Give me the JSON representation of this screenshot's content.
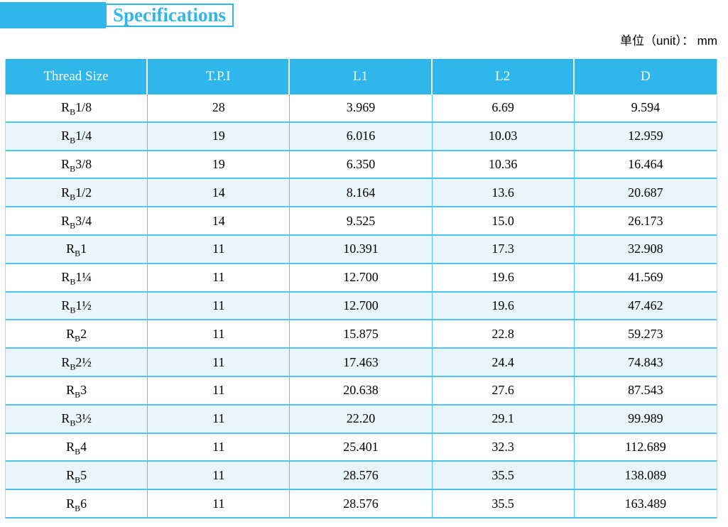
{
  "page": {
    "title": "Specifications",
    "unit_label": "单位（unit）： mm"
  },
  "colors": {
    "accent": "#2fb6ea",
    "row_divider": "#4cc5f0",
    "outer_border": "#a9e0f6",
    "alt_row_background": "#e9f4fb",
    "header_text": "#ffffff",
    "body_text": "#000000"
  },
  "table": {
    "thread_prefix": "R",
    "thread_subscript": "B",
    "headers": [
      "Thread Size",
      "T.P.I",
      "L1",
      "L2",
      "D"
    ],
    "rows": [
      {
        "size": "1/8",
        "tpi": "28",
        "l1": "3.969",
        "l2": "6.69",
        "d": "9.594"
      },
      {
        "size": "1/4",
        "tpi": "19",
        "l1": "6.016",
        "l2": "10.03",
        "d": "12.959"
      },
      {
        "size": "3/8",
        "tpi": "19",
        "l1": "6.350",
        "l2": "10.36",
        "d": "16.464"
      },
      {
        "size": "1/2",
        "tpi": "14",
        "l1": "8.164",
        "l2": "13.6",
        "d": "20.687"
      },
      {
        "size": "3/4",
        "tpi": "14",
        "l1": "9.525",
        "l2": "15.0",
        "d": "26.173"
      },
      {
        "size": "1",
        "tpi": "11",
        "l1": "10.391",
        "l2": "17.3",
        "d": "32.908"
      },
      {
        "size": "1¼",
        "tpi": "11",
        "l1": "12.700",
        "l2": "19.6",
        "d": "41.569"
      },
      {
        "size": "1½",
        "tpi": "11",
        "l1": "12.700",
        "l2": "19.6",
        "d": "47.462"
      },
      {
        "size": "2",
        "tpi": "11",
        "l1": "15.875",
        "l2": "22.8",
        "d": "59.273"
      },
      {
        "size": "2½",
        "tpi": "11",
        "l1": "17.463",
        "l2": "24.4",
        "d": "74.843"
      },
      {
        "size": "3",
        "tpi": "11",
        "l1": "20.638",
        "l2": "27.6",
        "d": "87.543"
      },
      {
        "size": "3½",
        "tpi": "11",
        "l1": "22.20",
        "l2": "29.1",
        "d": "99.989"
      },
      {
        "size": "4",
        "tpi": "11",
        "l1": "25.401",
        "l2": "32.3",
        "d": "112.689"
      },
      {
        "size": "5",
        "tpi": "11",
        "l1": "28.576",
        "l2": "35.5",
        "d": "138.089"
      },
      {
        "size": "6",
        "tpi": "11",
        "l1": "28.576",
        "l2": "35.5",
        "d": "163.489"
      }
    ]
  }
}
